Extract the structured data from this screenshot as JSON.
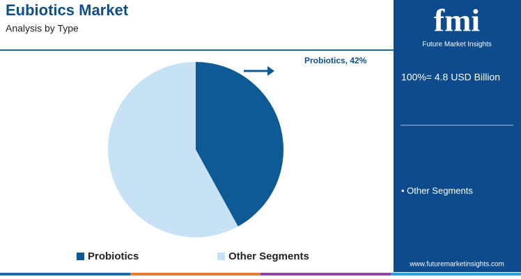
{
  "chart_data": {
    "type": "pie",
    "title": "Eubiotics Market",
    "subtitle": "Analysis by Type",
    "categories": [
      "Probiotics",
      "Other Segments"
    ],
    "values": [
      42,
      58
    ],
    "colors": [
      "#0e5a94",
      "#c7e2f4"
    ],
    "annotation": "Probiotics, 42%"
  },
  "sidebar": {
    "logo": "fmi",
    "brand": "Future Market Insights",
    "total": "100%= 4.8 USD Billion",
    "item": "• Other Segments",
    "url": "www.futuremarketinsights.com"
  }
}
